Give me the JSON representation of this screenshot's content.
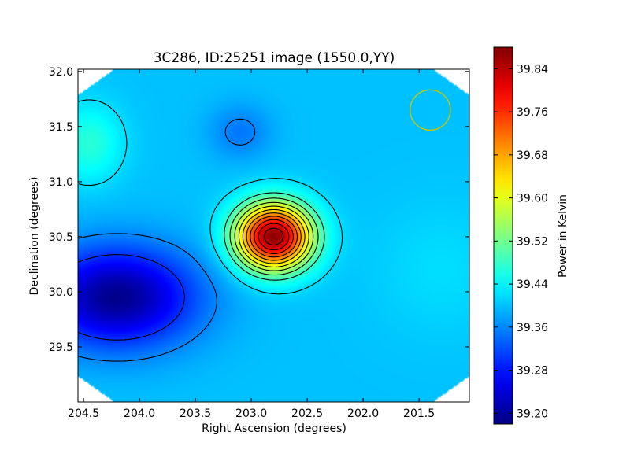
{
  "chart_data": {
    "type": "heatmap",
    "title": "3C286, ID:25251 image (1550.0,YY)",
    "xlabel": "Right Ascension (degrees)",
    "ylabel": "Declination (degrees)",
    "xlim": [
      204.55,
      201.05
    ],
    "ylim": [
      29.0,
      32.02
    ],
    "x_ticks": [
      {
        "value": 204.5,
        "label": "204.5"
      },
      {
        "value": 204.0,
        "label": "204.0"
      },
      {
        "value": 203.5,
        "label": "203.5"
      },
      {
        "value": 203.0,
        "label": "203.0"
      },
      {
        "value": 202.5,
        "label": "202.5"
      },
      {
        "value": 202.0,
        "label": "202.0"
      },
      {
        "value": 201.5,
        "label": "201.5"
      }
    ],
    "y_ticks": [
      {
        "value": 29.5,
        "label": "29.5"
      },
      {
        "value": 30.0,
        "label": "30.0"
      },
      {
        "value": 30.5,
        "label": "30.5"
      },
      {
        "value": 31.0,
        "label": "31.0"
      },
      {
        "value": 31.5,
        "label": "31.5"
      },
      {
        "value": 32.0,
        "label": "32.0"
      }
    ],
    "colorbar": {
      "label": "Power in Kelvin",
      "colormap": "jet",
      "range": [
        39.18,
        39.88
      ],
      "ticks": [
        {
          "value": 39.2,
          "label": "39.20"
        },
        {
          "value": 39.28,
          "label": "39.28"
        },
        {
          "value": 39.36,
          "label": "39.36"
        },
        {
          "value": 39.44,
          "label": "39.44"
        },
        {
          "value": 39.52,
          "label": "39.52"
        },
        {
          "value": 39.6,
          "label": "39.60"
        },
        {
          "value": 39.68,
          "label": "39.68"
        },
        {
          "value": 39.76,
          "label": "39.76"
        },
        {
          "value": 39.84,
          "label": "39.84"
        }
      ]
    },
    "background_level": 39.4,
    "features": [
      {
        "type": "peak",
        "ra": 202.8,
        "dec": 30.5,
        "value": 39.87
      },
      {
        "type": "trough",
        "ra": 204.2,
        "dec": 29.95,
        "value": 39.19
      },
      {
        "type": "plateau",
        "ra": 204.45,
        "dec": 31.35,
        "value": 39.47
      },
      {
        "type": "depression",
        "ra": 203.1,
        "dec": 31.45,
        "value": 39.35
      }
    ],
    "contour_levels": [
      39.3,
      39.36,
      39.42,
      39.48,
      39.52,
      39.56,
      39.6,
      39.64,
      39.68,
      39.72,
      39.76,
      39.8,
      39.84
    ],
    "beam_marker": {
      "ra": 201.4,
      "dec": 31.65,
      "radius_deg": 0.3,
      "color": "#c8c800"
    },
    "grid": false
  }
}
